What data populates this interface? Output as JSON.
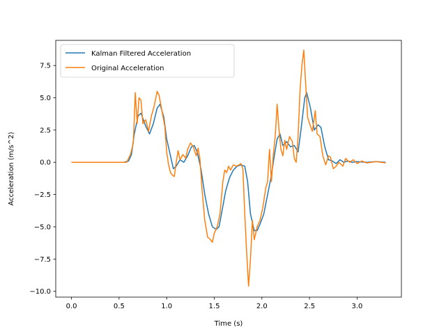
{
  "chart_data": {
    "type": "line",
    "title": "",
    "xlabel": "Time (s)",
    "ylabel": "Acceleration (m/s^2)",
    "xlim": [
      -0.165,
      3.465
    ],
    "ylim": [
      -10.45,
      9.45
    ],
    "x_ticks": [
      0.0,
      0.5,
      1.0,
      1.5,
      2.0,
      2.5,
      3.0
    ],
    "x_tick_labels": [
      "0.0",
      "0.5",
      "1.0",
      "1.5",
      "2.0",
      "2.5",
      "3.0"
    ],
    "y_ticks": [
      -10.0,
      -7.5,
      -5.0,
      -2.5,
      0.0,
      2.5,
      5.0,
      7.5
    ],
    "y_tick_labels": [
      "−10.0",
      "−7.5",
      "−5.0",
      "−2.5",
      "0.0",
      "2.5",
      "5.0",
      "7.5"
    ],
    "grid": false,
    "legend_position": "upper-left",
    "series": [
      {
        "name": "Kalman Filtered Acceleration",
        "color": "#1f77b4",
        "points": [
          [
            0.0,
            0.0
          ],
          [
            0.55,
            0.0
          ],
          [
            0.6,
            0.1
          ],
          [
            0.63,
            0.6
          ],
          [
            0.66,
            2.2
          ],
          [
            0.7,
            3.6
          ],
          [
            0.73,
            3.8
          ],
          [
            0.78,
            2.8
          ],
          [
            0.82,
            2.2
          ],
          [
            0.86,
            3.0
          ],
          [
            0.9,
            4.2
          ],
          [
            0.93,
            4.5
          ],
          [
            0.97,
            3.5
          ],
          [
            1.0,
            1.8
          ],
          [
            1.04,
            0.5
          ],
          [
            1.07,
            -0.5
          ],
          [
            1.1,
            -0.3
          ],
          [
            1.14,
            0.2
          ],
          [
            1.18,
            0.0
          ],
          [
            1.22,
            0.5
          ],
          [
            1.26,
            1.2
          ],
          [
            1.29,
            1.3
          ],
          [
            1.32,
            0.8
          ],
          [
            1.36,
            -0.5
          ],
          [
            1.4,
            -2.5
          ],
          [
            1.44,
            -4.0
          ],
          [
            1.48,
            -5.0
          ],
          [
            1.52,
            -5.2
          ],
          [
            1.55,
            -5.0
          ],
          [
            1.58,
            -3.8
          ],
          [
            1.62,
            -2.2
          ],
          [
            1.66,
            -1.2
          ],
          [
            1.7,
            -0.6
          ],
          [
            1.74,
            -0.3
          ],
          [
            1.78,
            -0.2
          ],
          [
            1.82,
            -0.3
          ],
          [
            1.85,
            -1.5
          ],
          [
            1.88,
            -4.0
          ],
          [
            1.92,
            -5.3
          ],
          [
            1.95,
            -5.3
          ],
          [
            1.98,
            -4.8
          ],
          [
            2.02,
            -4.0
          ],
          [
            2.06,
            -2.5
          ],
          [
            2.1,
            -1.0
          ],
          [
            2.13,
            0.5
          ],
          [
            2.16,
            1.8
          ],
          [
            2.19,
            2.2
          ],
          [
            2.22,
            1.3
          ],
          [
            2.26,
            1.6
          ],
          [
            2.3,
            1.2
          ],
          [
            2.34,
            1.3
          ],
          [
            2.38,
            0.8
          ],
          [
            2.41,
            2.5
          ],
          [
            2.45,
            5.0
          ],
          [
            2.47,
            5.4
          ],
          [
            2.51,
            4.2
          ],
          [
            2.55,
            2.5
          ],
          [
            2.59,
            2.9
          ],
          [
            2.62,
            2.7
          ],
          [
            2.66,
            1.2
          ],
          [
            2.7,
            0.2
          ],
          [
            2.74,
            0.1
          ],
          [
            2.78,
            -0.1
          ],
          [
            2.82,
            0.2
          ],
          [
            2.86,
            0.0
          ],
          [
            2.9,
            0.1
          ],
          [
            2.95,
            0.0
          ],
          [
            3.0,
            0.05
          ],
          [
            3.1,
            0.0
          ],
          [
            3.2,
            0.05
          ],
          [
            3.3,
            0.0
          ]
        ]
      },
      {
        "name": "Original Acceleration",
        "color": "#ff7f0e",
        "points": [
          [
            0.0,
            0.0
          ],
          [
            0.5,
            0.0
          ],
          [
            0.58,
            0.0
          ],
          [
            0.62,
            0.6
          ],
          [
            0.65,
            1.5
          ],
          [
            0.67,
            5.4
          ],
          [
            0.69,
            3.0
          ],
          [
            0.71,
            5.0
          ],
          [
            0.73,
            4.8
          ],
          [
            0.75,
            3.0
          ],
          [
            0.78,
            3.3
          ],
          [
            0.81,
            2.4
          ],
          [
            0.84,
            3.6
          ],
          [
            0.87,
            4.4
          ],
          [
            0.9,
            5.5
          ],
          [
            0.92,
            5.2
          ],
          [
            0.95,
            4.0
          ],
          [
            0.98,
            2.8
          ],
          [
            1.0,
            0.8
          ],
          [
            1.02,
            -0.2
          ],
          [
            1.04,
            -0.8
          ],
          [
            1.06,
            -1.0
          ],
          [
            1.08,
            -1.1
          ],
          [
            1.1,
            0.0
          ],
          [
            1.12,
            0.9
          ],
          [
            1.14,
            0.2
          ],
          [
            1.17,
            0.6
          ],
          [
            1.2,
            0.3
          ],
          [
            1.22,
            1.0
          ],
          [
            1.25,
            1.5
          ],
          [
            1.28,
            1.2
          ],
          [
            1.31,
            0.5
          ],
          [
            1.33,
            1.1
          ],
          [
            1.35,
            0.2
          ],
          [
            1.37,
            -2.0
          ],
          [
            1.4,
            -4.5
          ],
          [
            1.43,
            -5.8
          ],
          [
            1.46,
            -6.0
          ],
          [
            1.48,
            -6.2
          ],
          [
            1.5,
            -5.5
          ],
          [
            1.53,
            -5.0
          ],
          [
            1.56,
            -4.0
          ],
          [
            1.59,
            -1.5
          ],
          [
            1.61,
            -0.6
          ],
          [
            1.63,
            -0.8
          ],
          [
            1.65,
            -0.3
          ],
          [
            1.67,
            -0.6
          ],
          [
            1.7,
            -0.2
          ],
          [
            1.73,
            -0.3
          ],
          [
            1.76,
            -0.2
          ],
          [
            1.78,
            -0.1
          ],
          [
            1.8,
            -0.5
          ],
          [
            1.82,
            -4.0
          ],
          [
            1.84,
            -7.0
          ],
          [
            1.86,
            -9.6
          ],
          [
            1.88,
            -7.5
          ],
          [
            1.9,
            -4.5
          ],
          [
            1.92,
            -6.0
          ],
          [
            1.95,
            -5.0
          ],
          [
            1.98,
            -4.5
          ],
          [
            2.01,
            -3.5
          ],
          [
            2.04,
            -2.0
          ],
          [
            2.06,
            -1.5
          ],
          [
            2.08,
            1.0
          ],
          [
            2.1,
            -1.5
          ],
          [
            2.12,
            0.6
          ],
          [
            2.14,
            2.0
          ],
          [
            2.16,
            4.5
          ],
          [
            2.18,
            2.5
          ],
          [
            2.2,
            1.0
          ],
          [
            2.22,
            0.5
          ],
          [
            2.24,
            1.7
          ],
          [
            2.26,
            1.0
          ],
          [
            2.29,
            2.0
          ],
          [
            2.32,
            1.6
          ],
          [
            2.34,
            0.3
          ],
          [
            2.36,
            0.0
          ],
          [
            2.38,
            2.0
          ],
          [
            2.4,
            5.5
          ],
          [
            2.42,
            7.5
          ],
          [
            2.44,
            8.7
          ],
          [
            2.46,
            6.0
          ],
          [
            2.48,
            3.5
          ],
          [
            2.5,
            3.0
          ],
          [
            2.53,
            2.4
          ],
          [
            2.56,
            4.0
          ],
          [
            2.58,
            2.2
          ],
          [
            2.61,
            2.0
          ],
          [
            2.64,
            0.5
          ],
          [
            2.67,
            -0.2
          ],
          [
            2.7,
            0.5
          ],
          [
            2.72,
            0.4
          ],
          [
            2.75,
            -0.5
          ],
          [
            2.78,
            -0.3
          ],
          [
            2.81,
            0.0
          ],
          [
            2.85,
            -0.3
          ],
          [
            2.88,
            0.3
          ],
          [
            2.92,
            0.0
          ],
          [
            2.96,
            0.2
          ],
          [
            3.0,
            -0.1
          ],
          [
            3.05,
            0.1
          ],
          [
            3.1,
            -0.05
          ],
          [
            3.2,
            0.05
          ],
          [
            3.3,
            -0.05
          ]
        ]
      }
    ]
  }
}
